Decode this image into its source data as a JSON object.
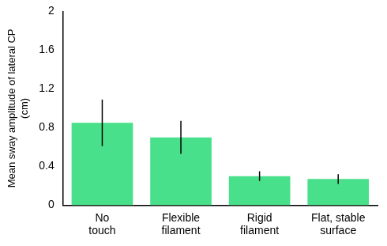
{
  "chart_data": {
    "type": "bar",
    "y_label": [
      "Mean sway amplitude of lateral CP",
      "(cm)"
    ],
    "categories": [
      [
        "No",
        "touch"
      ],
      [
        "Flexible",
        "filament"
      ],
      [
        "Rigid",
        "filament"
      ],
      [
        "Flat, stable",
        "surface"
      ]
    ],
    "values": [
      0.85,
      0.7,
      0.3,
      0.27
    ],
    "errors": [
      0.24,
      0.17,
      0.05,
      0.05
    ],
    "color": "#48e08a",
    "ylim": [
      0,
      2
    ],
    "yticks": [
      0,
      0.4,
      0.8,
      1.2,
      1.6,
      2
    ],
    "grid": false
  }
}
